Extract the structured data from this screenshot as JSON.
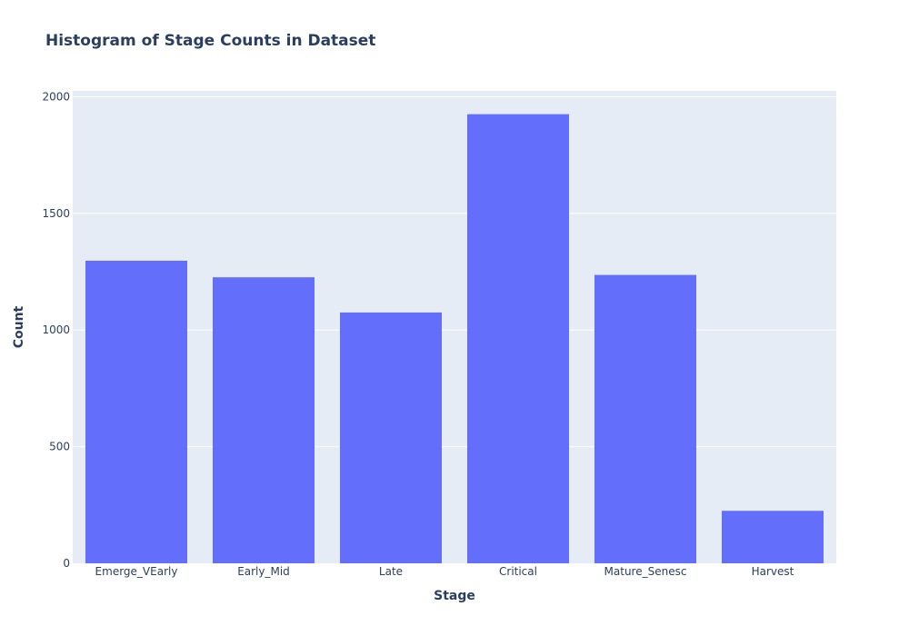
{
  "chart_data": {
    "type": "bar",
    "title": "Histogram of Stage Counts in Dataset",
    "xlabel": "Stage",
    "ylabel": "Count",
    "categories": [
      "Emerge_VEarly",
      "Early_Mid",
      "Late",
      "Critical",
      "Mature_Senesc",
      "Harvest"
    ],
    "values": [
      1297,
      1226,
      1075,
      1925,
      1236,
      225
    ],
    "ylim": [
      0,
      2025
    ],
    "yticks": [
      0,
      500,
      1000,
      1500,
      2000
    ],
    "grid": true,
    "colors": {
      "bar": "#636efa",
      "plot_bg": "#e5ecf6",
      "grid": "#ffffff",
      "text": "#2a3f5f"
    }
  }
}
